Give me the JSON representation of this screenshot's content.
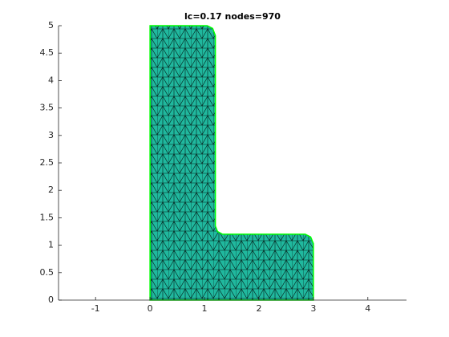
{
  "chart_data": {
    "type": "mesh",
    "title": "lc=0.17 nodes=970",
    "outline": {
      "x": [
        0,
        0,
        1.05,
        1.15,
        1.2,
        1.2,
        1.24,
        1.33,
        2.85,
        2.95,
        3,
        3,
        0
      ],
      "y": [
        0,
        5,
        5,
        4.95,
        4.82,
        1.35,
        1.25,
        1.2,
        1.2,
        1.15,
        1.03,
        0,
        0
      ]
    },
    "fill_color": "#20b89e",
    "edge_color": "#00ff00",
    "mesh_color": "#000000",
    "xlim": [
      -1.68,
      4.71
    ],
    "ylim": [
      0,
      5
    ],
    "xticks": [
      -1,
      0,
      1,
      2,
      3,
      4
    ],
    "yticks": [
      0,
      0.5,
      1,
      1.5,
      2,
      2.5,
      3,
      3.5,
      4,
      4.5,
      5
    ]
  }
}
